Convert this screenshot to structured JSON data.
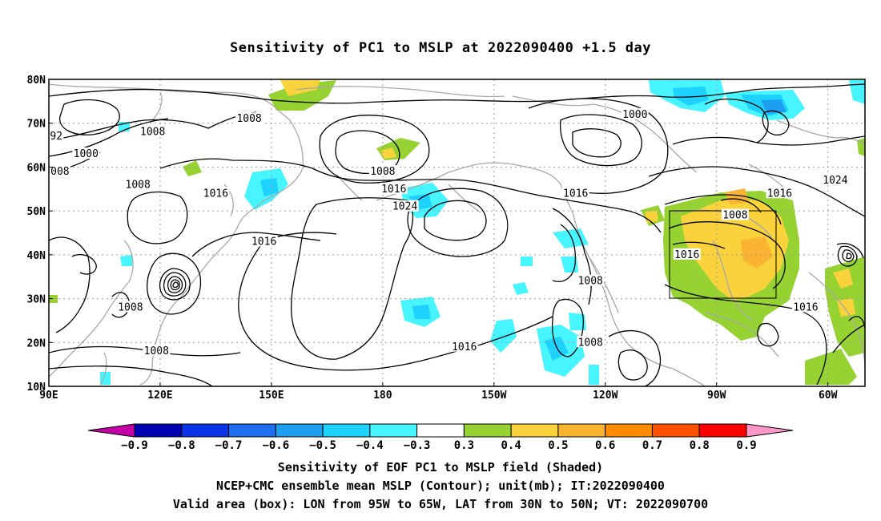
{
  "title": "Sensitivity of PC1 to MSLP at 2022090400 +1.5 day",
  "map": {
    "lon_labels": [
      "90E",
      "120E",
      "150E",
      "180",
      "150W",
      "120W",
      "90W",
      "60W"
    ],
    "lat_labels": [
      "80N",
      "70N",
      "60N",
      "50N",
      "40N",
      "30N",
      "20N",
      "10N"
    ],
    "lon_range_deg_east": [
      90,
      310
    ],
    "lat_range_deg": [
      10,
      80
    ],
    "box": {
      "lon_west": "95W",
      "lon_east": "65W",
      "lat_south": "30N",
      "lat_north": "50N"
    },
    "contour_color": "#000000",
    "coastline_color": "#a8a8a8",
    "contour_labels": [
      {
        "text": "1008",
        "lon": 144,
        "lat": 71
      },
      {
        "text": "1008",
        "lon": 118,
        "lat": 68
      },
      {
        "text": "1000",
        "lon": 248,
        "lat": 72
      },
      {
        "text": "92",
        "lon": 92,
        "lat": 67
      },
      {
        "text": "1000",
        "lon": 100,
        "lat": 63
      },
      {
        "text": "008",
        "lon": 93,
        "lat": 59
      },
      {
        "text": "1008",
        "lon": 180,
        "lat": 59
      },
      {
        "text": "1008",
        "lon": 114,
        "lat": 56
      },
      {
        "text": "1016",
        "lon": 135,
        "lat": 54
      },
      {
        "text": "1016",
        "lon": 183,
        "lat": 55
      },
      {
        "text": "1024",
        "lon": 186,
        "lat": 51
      },
      {
        "text": "1016",
        "lon": 232,
        "lat": 54
      },
      {
        "text": "1016",
        "lon": 287,
        "lat": 54
      },
      {
        "text": "1024",
        "lon": 302,
        "lat": 57
      },
      {
        "text": "1008",
        "lon": 275,
        "lat": 49
      },
      {
        "text": "1016",
        "lon": 148,
        "lat": 43
      },
      {
        "text": "1016",
        "lon": 262,
        "lat": 40
      },
      {
        "text": "1008",
        "lon": 236,
        "lat": 34
      },
      {
        "text": "1016",
        "lon": 294,
        "lat": 28
      },
      {
        "text": "1008",
        "lon": 112,
        "lat": 28
      },
      {
        "text": "1016",
        "lon": 202,
        "lat": 19
      },
      {
        "text": "1008",
        "lon": 236,
        "lat": 20
      },
      {
        "text": "1008",
        "lon": 119,
        "lat": 18
      }
    ]
  },
  "colorbar": {
    "colors": [
      "#c400a8",
      "#0000b4",
      "#0a32e6",
      "#1e6ef0",
      "#1e9ef0",
      "#1ed2ff",
      "#46f5ff",
      "#ffffff",
      "#96d232",
      "#fad23c",
      "#fab432",
      "#ff8c00",
      "#ff5000",
      "#ff0000",
      "#ff96c8"
    ],
    "labels": [
      "-0.9",
      "-0.8",
      "-0.7",
      "-0.6",
      "-0.5",
      "-0.4",
      "-0.3",
      "0.3",
      "0.4",
      "0.5",
      "0.6",
      "0.7",
      "0.8",
      "0.9"
    ]
  },
  "captions": {
    "line1": "Sensitivity of EOF PC1 to MSLP field (Shaded)",
    "line2": "NCEP+CMC ensemble mean MSLP (Contour); unit(mb); IT:2022090400",
    "line3": "Valid area (box): LON from 95W to 65W, LAT from 30N to 50N; VT: 2022090700"
  }
}
